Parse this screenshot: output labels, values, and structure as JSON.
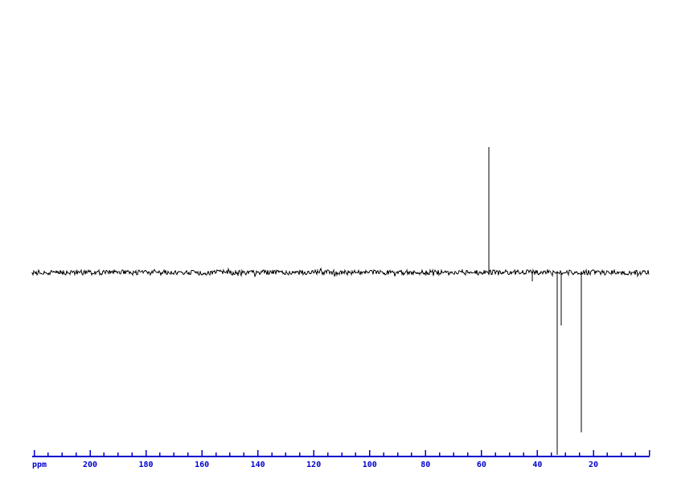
{
  "chart_data": {
    "type": "line",
    "subtype": "nmr-spectrum-dept",
    "title": "",
    "xlabel": "ppm",
    "ylabel": "",
    "x_axis": {
      "unit": "ppm",
      "reversed": true,
      "min_ppm": 0,
      "max_ppm": 220.7,
      "major_tick_interval_ppm": 20,
      "minor_tick_interval_ppm": 5,
      "tick_labels": [
        "200",
        "180",
        "160",
        "140",
        "120",
        "100",
        "80",
        "60",
        "40",
        "20"
      ],
      "tick_label_values": [
        200,
        180,
        160,
        140,
        120,
        100,
        80,
        60,
        40,
        20
      ]
    },
    "peaks": [
      {
        "ppm": 57.4,
        "direction": "up",
        "relative_intensity": 0.687
      },
      {
        "ppm": 41.8,
        "direction": "down",
        "relative_intensity": 0.048
      },
      {
        "ppm": 32.9,
        "direction": "down",
        "relative_intensity": 1.0
      },
      {
        "ppm": 31.5,
        "direction": "down",
        "relative_intensity": 0.29
      },
      {
        "ppm": 24.3,
        "direction": "down",
        "relative_intensity": 0.877
      }
    ],
    "colors": {
      "trace": "#000000",
      "axis": "#0000cc",
      "background": "#ffffff"
    },
    "grid": false,
    "legend_position": "none"
  }
}
